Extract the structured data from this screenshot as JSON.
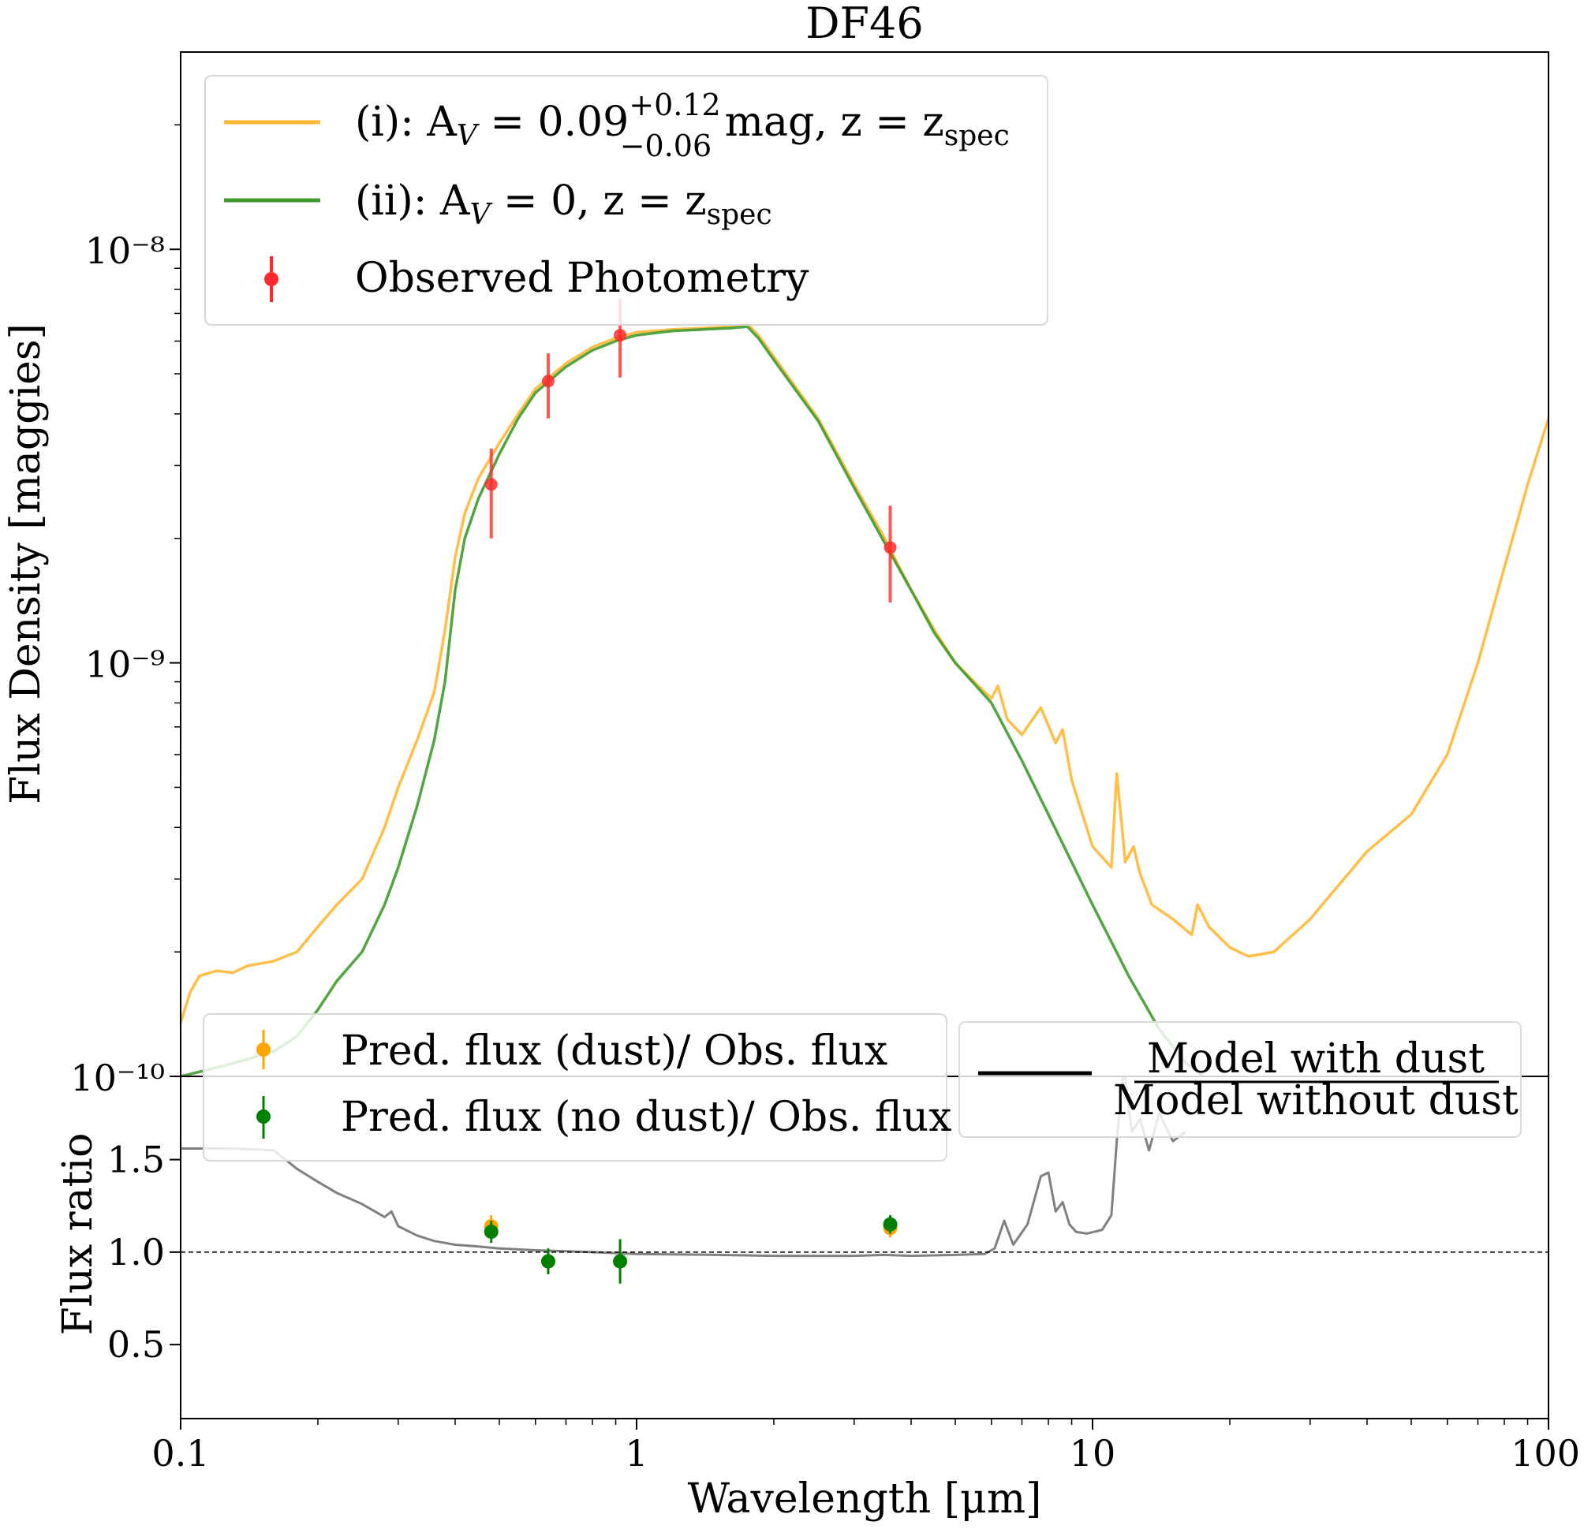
{
  "title": "DF46",
  "colors": {
    "dust_model": "#ffb733",
    "nodust_model": "#3f9b2c",
    "observed": "#ff2b2b",
    "pred_dust": "#ffa500",
    "pred_nodust": "#008000",
    "ratio_line": "#808080",
    "reference_line": "#000000"
  },
  "chart_data": [
    {
      "panel": "top",
      "type": "line",
      "xscale": "log",
      "yscale": "log",
      "xlim": [
        0.1,
        100
      ],
      "ylim": [
        1e-10,
        3e-08
      ],
      "ylabel": "Flux Density [maggies]",
      "ytick_labels": [
        "10⁻⁸",
        "10⁻⁹",
        "10⁻¹⁰"
      ],
      "yticks": [
        1e-08,
        1e-09,
        1e-10
      ],
      "legend": {
        "position": "top-left",
        "entries": [
          {
            "label": "(i): A_V = 0.09(+0.12/−0.06) mag, z = z_spec",
            "text_main": "(i): A",
            "text_v": "V",
            "text_eq": " = 0.09",
            "sup": "+0.12",
            "sub": "−0.06",
            "text_tail": " mag, z = z",
            "text_tail_sub": "spec"
          },
          {
            "label": "(ii): A_V = 0, z = z_spec",
            "text_main": "(ii): A",
            "text_v": "V",
            "text_eq": " = 0, z = z",
            "text_tail_sub": "spec"
          },
          {
            "label": "Observed Photometry",
            "text_main": "Observed Photometry"
          }
        ]
      },
      "series": [
        {
          "name": "(i): A_V = 0.09 mag, z = z_spec",
          "x": [
            0.1,
            0.105,
            0.11,
            0.12,
            0.13,
            0.14,
            0.16,
            0.18,
            0.2,
            0.22,
            0.25,
            0.28,
            0.3,
            0.33,
            0.36,
            0.38,
            0.4,
            0.42,
            0.45,
            0.5,
            0.55,
            0.6,
            0.7,
            0.8,
            0.9,
            1.0,
            1.2,
            1.4,
            1.6,
            1.75,
            1.85,
            2.0,
            2.5,
            3.0,
            3.5,
            4.0,
            4.5,
            5.0,
            5.5,
            6.0,
            6.2,
            6.5,
            7.0,
            7.7,
            8.3,
            8.6,
            9.0,
            10.0,
            11.0,
            11.3,
            11.8,
            12.3,
            12.7,
            13.5,
            15.0,
            16.5,
            17.0,
            18.0,
            20.0,
            22.0,
            25.0,
            30.0,
            40.0,
            50.0,
            60.0,
            70.0,
            80.0,
            90.0,
            100.0
          ],
          "y": [
            1.35e-10,
            1.6e-10,
            1.75e-10,
            1.8e-10,
            1.78e-10,
            1.85e-10,
            1.9e-10,
            2e-10,
            2.3e-10,
            2.6e-10,
            3e-10,
            4e-10,
            5e-10,
            6.5e-10,
            8.5e-10,
            1.2e-09,
            1.8e-09,
            2.3e-09,
            2.8e-09,
            3.4e-09,
            4e-09,
            4.6e-09,
            5.3e-09,
            5.8e-09,
            6.1e-09,
            6.3e-09,
            6.4e-09,
            6.45e-09,
            6.5e-09,
            6.6e-09,
            6.2e-09,
            5.5e-09,
            3.9e-09,
            2.7e-09,
            2e-09,
            1.5e-09,
            1.2e-09,
            1e-09,
            9e-10,
            8.2e-10,
            8.8e-10,
            7.3e-10,
            6.7e-10,
            7.8e-10,
            6.4e-10,
            6.9e-10,
            5.2e-10,
            3.6e-10,
            3.2e-10,
            5.4e-10,
            3.3e-10,
            3.6e-10,
            3.1e-10,
            2.6e-10,
            2.4e-10,
            2.2e-10,
            2.6e-10,
            2.3e-10,
            2.05e-10,
            1.95e-10,
            2e-10,
            2.4e-10,
            3.5e-10,
            4.3e-10,
            6e-10,
            1e-09,
            1.7e-09,
            2.7e-09,
            3.9e-09
          ]
        },
        {
          "name": "(ii): A_V = 0, z = z_spec",
          "x": [
            0.1,
            0.12,
            0.14,
            0.16,
            0.18,
            0.2,
            0.22,
            0.25,
            0.28,
            0.3,
            0.33,
            0.36,
            0.38,
            0.4,
            0.42,
            0.45,
            0.5,
            0.55,
            0.6,
            0.7,
            0.8,
            0.9,
            1.0,
            1.2,
            1.4,
            1.6,
            1.75,
            1.85,
            2.0,
            2.5,
            3.0,
            3.5,
            4.0,
            4.5,
            5.0,
            6.0,
            7.0,
            8.0,
            10.0,
            12.0,
            14.0,
            16.0,
            17.5
          ],
          "y": [
            1e-10,
            1.05e-10,
            1.1e-10,
            1.15e-10,
            1.25e-10,
            1.45e-10,
            1.7e-10,
            2e-10,
            2.6e-10,
            3.2e-10,
            4.5e-10,
            6.5e-10,
            9e-10,
            1.5e-09,
            2e-09,
            2.5e-09,
            3.2e-09,
            3.9e-09,
            4.5e-09,
            5.2e-09,
            5.7e-09,
            6e-09,
            6.2e-09,
            6.35e-09,
            6.4e-09,
            6.45e-09,
            6.5e-09,
            6.1e-09,
            5.4e-09,
            3.85e-09,
            2.65e-09,
            1.95e-09,
            1.5e-09,
            1.18e-09,
            1e-09,
            8e-10,
            5.8e-10,
            4.3e-10,
            2.6e-10,
            1.75e-10,
            1.3e-10,
            1.08e-10,
            1e-10
          ]
        }
      ],
      "observed_photometry": {
        "name": "Observed Photometry",
        "x": [
          0.48,
          0.64,
          0.92,
          3.6
        ],
        "y": [
          2.7e-09,
          4.8e-09,
          6.2e-09,
          1.9e-09
        ],
        "yerr_low": [
          2e-09,
          3.9e-09,
          4.9e-09,
          1.4e-09
        ],
        "yerr_high": [
          3.3e-09,
          5.6e-09,
          7.6e-09,
          2.4e-09
        ]
      }
    },
    {
      "panel": "bottom",
      "type": "scatter",
      "xscale": "log",
      "xlim": [
        0.1,
        100
      ],
      "ylim": [
        0.1,
        1.95
      ],
      "xlabel": "Wavelength [μm]",
      "ylabel": "Flux ratio",
      "xticks": [
        0.1,
        1,
        10,
        100
      ],
      "xtick_labels": [
        "0.1",
        "1",
        "10",
        "100"
      ],
      "yticks": [
        0.5,
        1.0,
        1.5
      ],
      "ytick_labels": [
        "0.5",
        "1.0",
        "1.5"
      ],
      "reference_y": 1.0,
      "legend_left": {
        "position": "top-left",
        "entries": [
          {
            "label": "Pred. flux (dust)/ Obs. flux"
          },
          {
            "label": "Pred. flux (no dust)/ Obs. flux"
          }
        ]
      },
      "legend_right": {
        "position": "top-right",
        "numerator": "Model with dust",
        "denominator": "Model without dust"
      },
      "ratio_curve": {
        "name": "Model with dust / Model without dust",
        "x": [
          0.1,
          0.13,
          0.16,
          0.18,
          0.2,
          0.22,
          0.25,
          0.28,
          0.29,
          0.3,
          0.33,
          0.36,
          0.4,
          0.45,
          0.5,
          0.6,
          0.8,
          1.0,
          1.5,
          2.0,
          3.0,
          3.5,
          4.0,
          5.0,
          5.8,
          6.1,
          6.4,
          6.7,
          7.2,
          7.7,
          8.0,
          8.3,
          8.6,
          8.9,
          9.2,
          9.7,
          10.5,
          11.0,
          11.3,
          11.7,
          12.2,
          12.7,
          13.3,
          14.0,
          15.0,
          16.0
        ],
        "y": [
          1.56,
          1.56,
          1.55,
          1.45,
          1.38,
          1.32,
          1.26,
          1.19,
          1.22,
          1.14,
          1.09,
          1.06,
          1.04,
          1.03,
          1.02,
          1.01,
          1.0,
          0.99,
          0.985,
          0.98,
          0.98,
          0.985,
          0.98,
          0.985,
          0.99,
          1.02,
          1.17,
          1.04,
          1.15,
          1.41,
          1.43,
          1.22,
          1.27,
          1.15,
          1.11,
          1.1,
          1.12,
          1.2,
          1.6,
          2.0,
          1.65,
          1.72,
          1.55,
          1.75,
          1.6,
          1.65
        ]
      },
      "pred_dust": {
        "name": "Pred. flux (dust)/ Obs. flux",
        "x": [
          0.48,
          0.64,
          0.92,
          3.6
        ],
        "y": [
          1.14,
          0.95,
          0.95,
          1.13
        ],
        "err": [
          0.06,
          0.07,
          0.12,
          0.05
        ]
      },
      "pred_nodust": {
        "name": "Pred. flux (no dust)/ Obs. flux",
        "x": [
          0.48,
          0.64,
          0.92,
          3.6
        ],
        "y": [
          1.11,
          0.95,
          0.95,
          1.15
        ],
        "err": [
          0.06,
          0.07,
          0.12,
          0.05
        ]
      }
    }
  ]
}
